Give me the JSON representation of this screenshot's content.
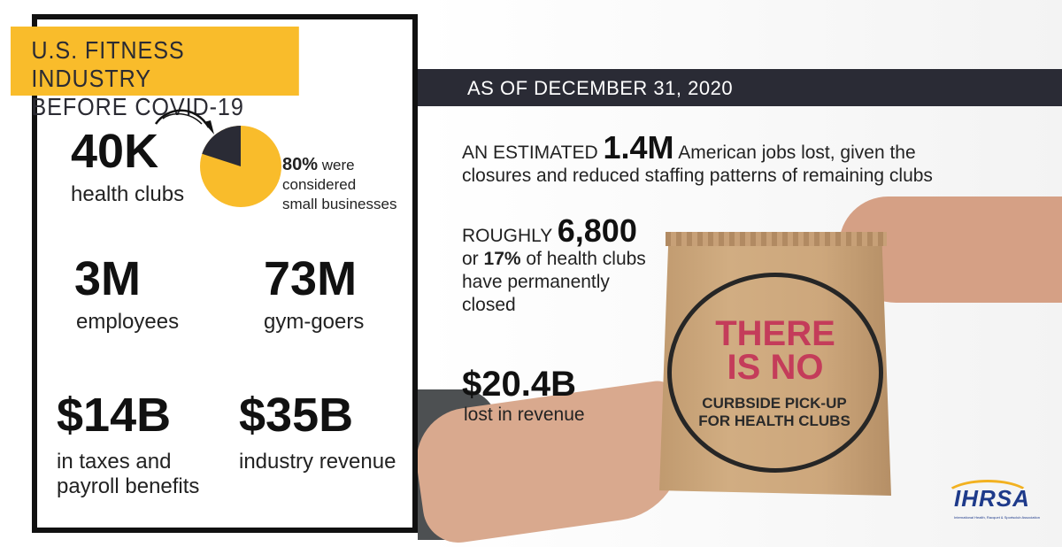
{
  "left_panel": {
    "title_line1": "U.S. FITNESS INDUSTRY",
    "title_line2": "BEFORE COVID-19",
    "stats": {
      "clubs_value": "40K",
      "clubs_label": "health clubs",
      "pie_percent": "80%",
      "pie_text_1": " were",
      "pie_text_2": "considered",
      "pie_text_3": "small businesses",
      "employees_value": "3M",
      "employees_label": "employees",
      "gymgoers_value": "73M",
      "gymgoers_label": "gym-goers",
      "taxes_value": "$14B",
      "taxes_label_1": "in taxes and",
      "taxes_label_2": "payroll benefits",
      "revenue_value": "$35B",
      "revenue_label": "industry revenue"
    },
    "pie_fraction": 0.8,
    "colors": {
      "accent": "#f9bc2b",
      "dark": "#2a2b35"
    }
  },
  "right_panel": {
    "date_header": "AS OF DECEMBER 31, 2020",
    "jobs_prefix": "AN ESTIMATED ",
    "jobs_value": "1.4M",
    "jobs_suffix": " American jobs lost, given the",
    "jobs_line2": "closures and reduced staffing patterns of remaining clubs",
    "closed_prefix": "ROUGHLY ",
    "closed_value": "6,800",
    "closed_line2_a": "or ",
    "closed_line2_b": "17%",
    "closed_line2_c": " of health clubs",
    "closed_line3": "have permanently",
    "closed_line4": "closed",
    "revenue_value": "$20.4B",
    "revenue_label": "lost in revenue"
  },
  "bag": {
    "line1": "THERE",
    "line2": "IS NO",
    "sub1": "CURBSIDE PICK-UP",
    "sub2": "FOR HEALTH CLUBS"
  },
  "logo": {
    "text": "IHRSA",
    "subtext": "International Health, Racquet & Sportsclub Association"
  }
}
